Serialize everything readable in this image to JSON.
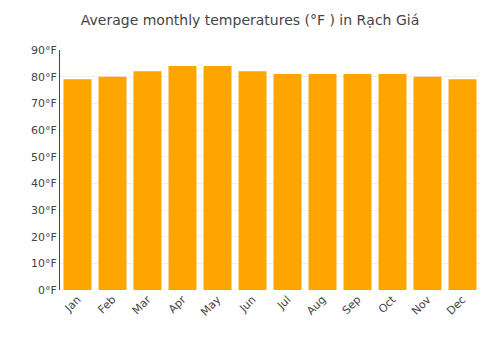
{
  "chart_data": {
    "type": "bar",
    "title": "Average monthly temperatures (°F ) in Rạch Giá",
    "categories": [
      "Jan",
      "Feb",
      "Mar",
      "Apr",
      "May",
      "Jun",
      "Jul",
      "Aug",
      "Sep",
      "Oct",
      "Nov",
      "Dec"
    ],
    "values": [
      79,
      80,
      82,
      84,
      84,
      82,
      81,
      81,
      81,
      81,
      80,
      79
    ],
    "color": "#FFA500",
    "ylim": [
      0,
      90
    ],
    "yticks": [
      {
        "value": 0,
        "label": "0°F"
      },
      {
        "value": 10,
        "label": "10°F"
      },
      {
        "value": 20,
        "label": "20°F"
      },
      {
        "value": 30,
        "label": "30°F"
      },
      {
        "value": 40,
        "label": "40°F"
      },
      {
        "value": 50,
        "label": "50°F"
      },
      {
        "value": 60,
        "label": "60°F"
      },
      {
        "value": 70,
        "label": "70°F"
      },
      {
        "value": 80,
        "label": "80°F"
      },
      {
        "value": 90,
        "label": "90°F"
      }
    ],
    "grid": true
  }
}
